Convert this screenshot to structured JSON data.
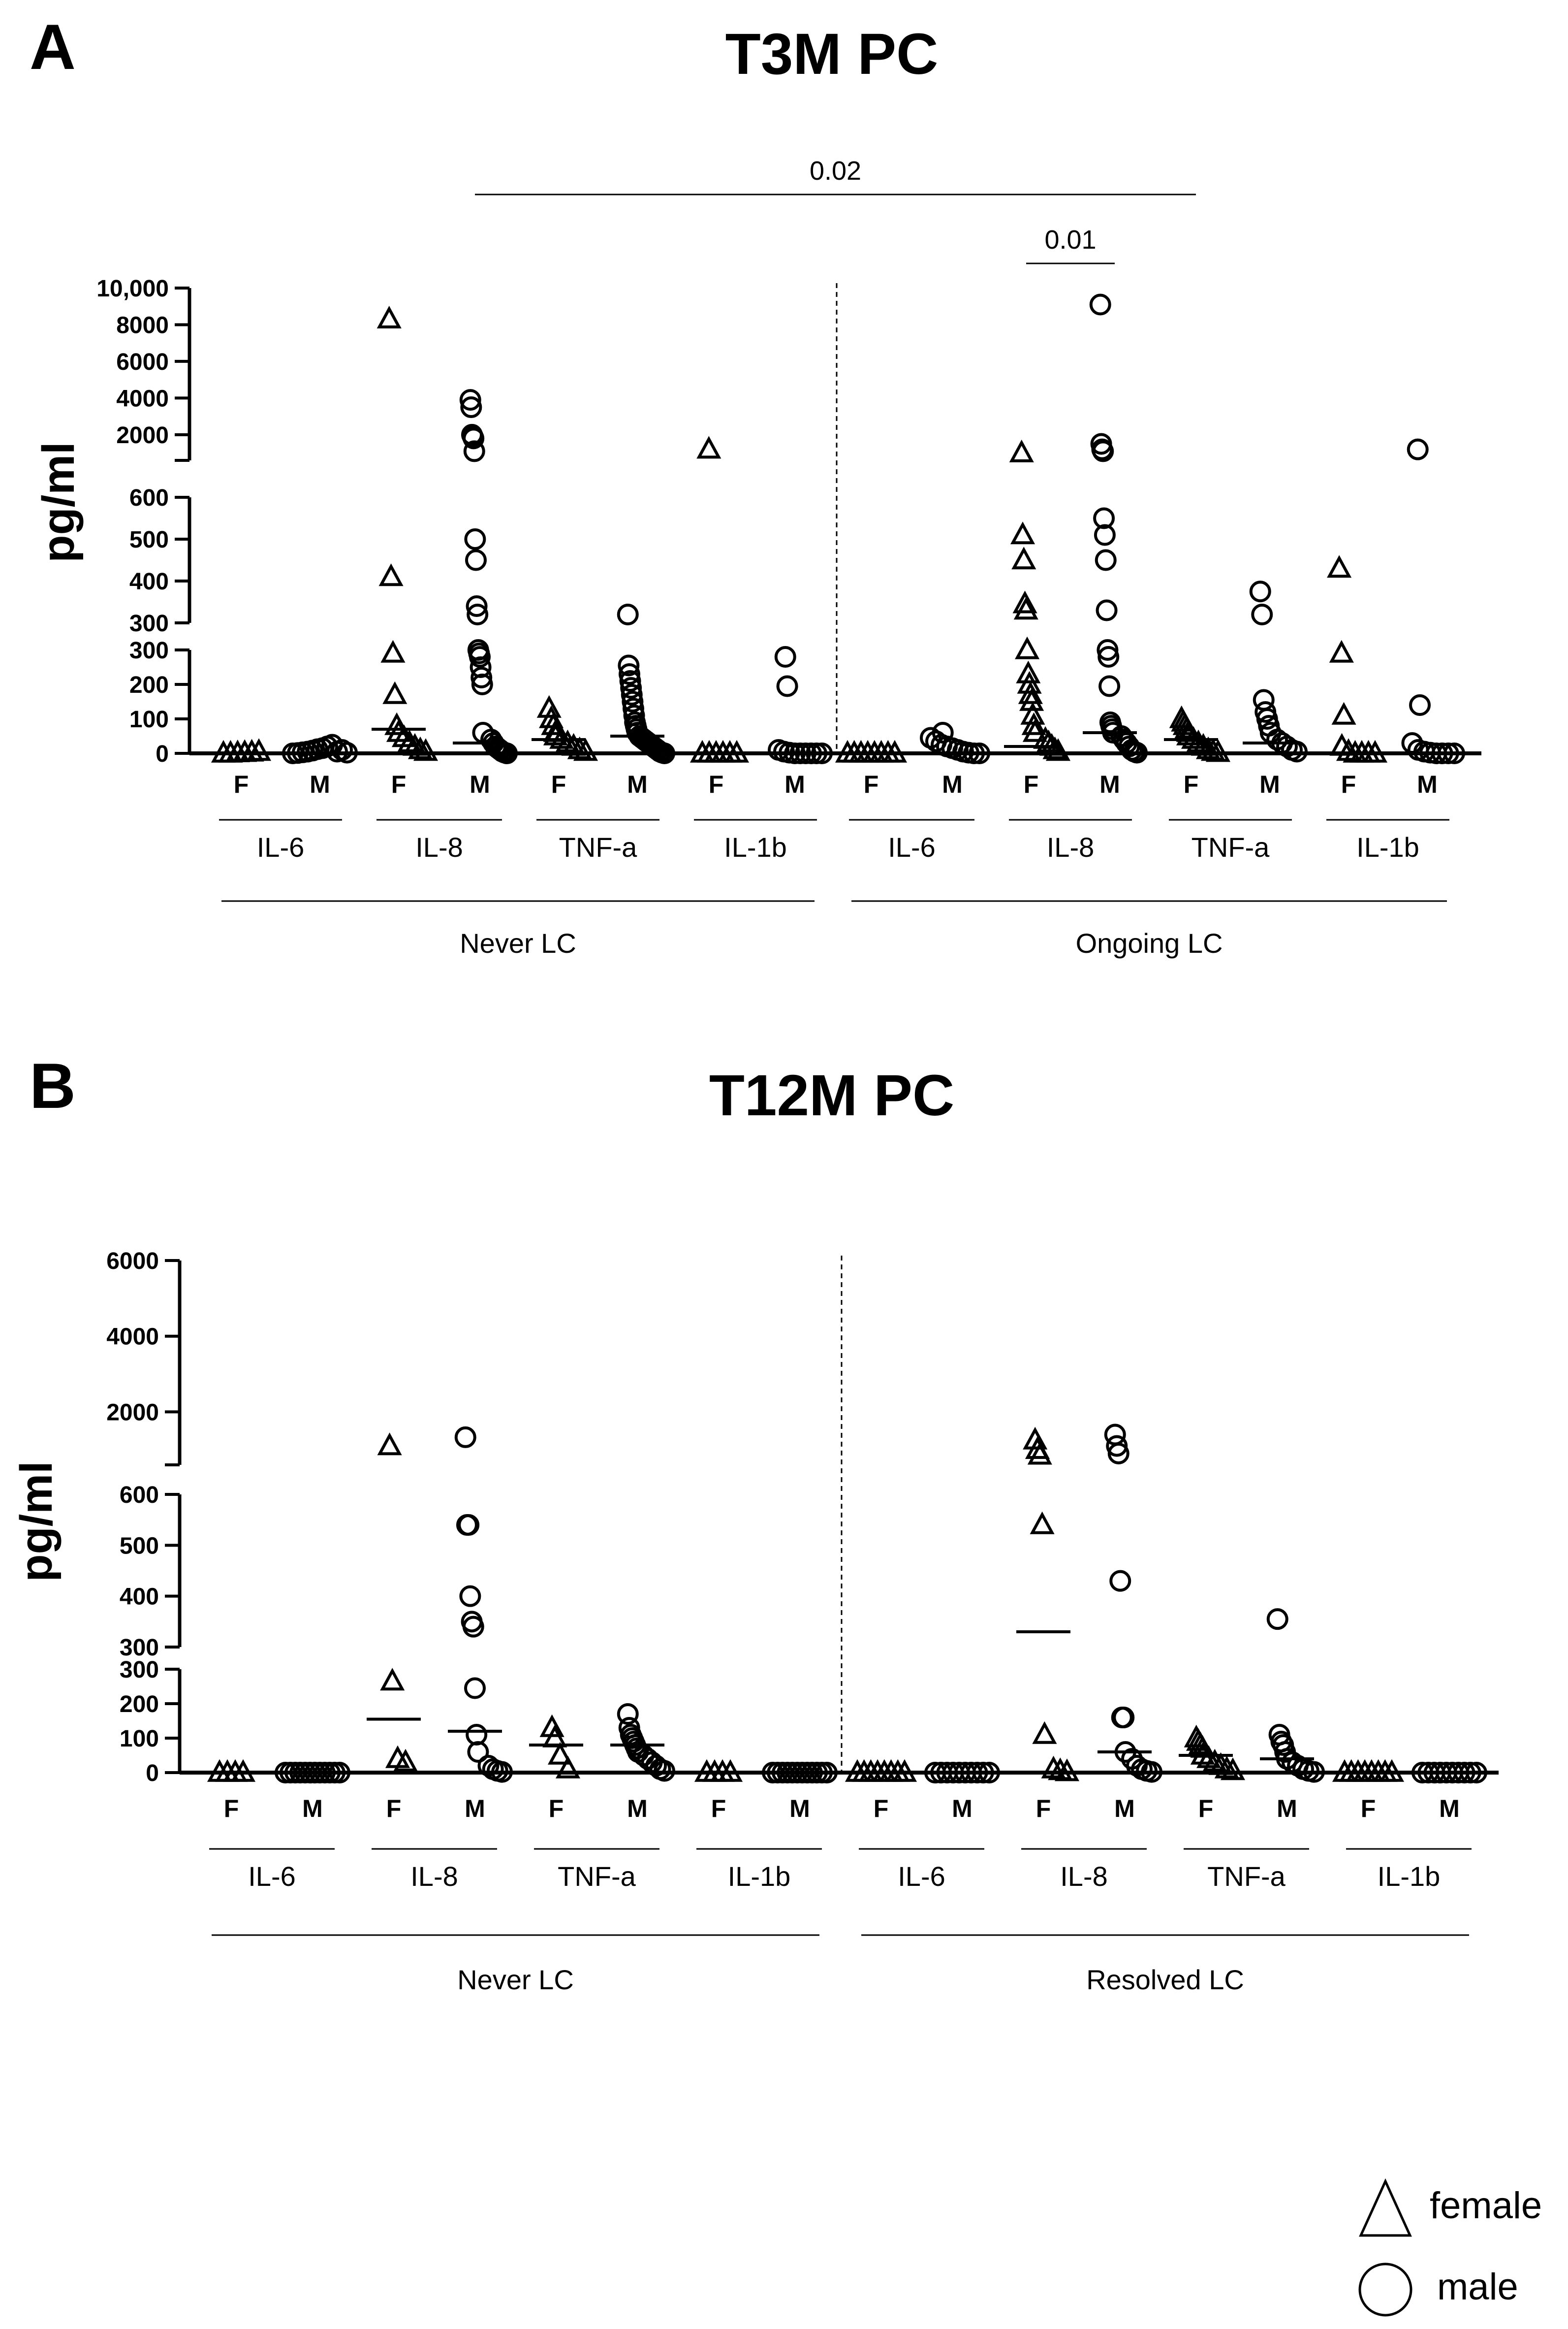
{
  "chart_data": [
    {
      "panel": "A",
      "title": "T3M PC",
      "type": "scatter",
      "ylabel": "pg/ml",
      "y_axis_segments": [
        {
          "range": [
            0,
            300
          ],
          "ticks": [
            {
              "v": 0,
              "label": "0"
            },
            {
              "v": 100,
              "label": "100"
            },
            {
              "v": 200,
              "label": "200"
            },
            {
              "v": 300,
              "label": "300"
            }
          ]
        },
        {
          "range": [
            300,
            600
          ],
          "ticks": [
            {
              "v": 300,
              "label": "300"
            },
            {
              "v": 400,
              "label": "400"
            },
            {
              "v": 500,
              "label": "500"
            },
            {
              "v": 600,
              "label": "600"
            }
          ]
        },
        {
          "range": [
            600,
            10000
          ],
          "ticks": [
            {
              "v": 2000,
              "label": "2000"
            },
            {
              "v": 4000,
              "label": "4000"
            },
            {
              "v": 6000,
              "label": "6000"
            },
            {
              "v": 8000,
              "label": "8000"
            },
            {
              "v": 10000,
              "label": "10,000"
            }
          ]
        }
      ],
      "cytokine_labels": [
        "IL-6",
        "IL-8",
        "TNF-a",
        "IL-1b",
        "IL-6",
        "IL-8",
        "TNF-a",
        "IL-1b"
      ],
      "group_labels": [
        "Never LC",
        "Ongoing LC"
      ],
      "significance": [
        {
          "label": "0.02",
          "from_column": 3,
          "to_column": 12
        },
        {
          "label": "0.01",
          "from_column": 10,
          "to_column": 11
        }
      ],
      "columns": [
        {
          "sex": "F",
          "shape": "triangle",
          "median": 0,
          "values": [
            0,
            0,
            1,
            2,
            3,
            5
          ]
        },
        {
          "sex": "M",
          "shape": "circle",
          "median": 0,
          "values": [
            0,
            1,
            3,
            5,
            8,
            12,
            15,
            20,
            25,
            5,
            10,
            2
          ]
        },
        {
          "sex": "F",
          "shape": "triangle",
          "median": 70,
          "values": [
            8300,
            410,
            290,
            170,
            80,
            60,
            45,
            30,
            20,
            10,
            5
          ]
        },
        {
          "sex": "M",
          "shape": "circle",
          "median": 30,
          "values": [
            3900,
            3500,
            2000,
            1900,
            1800,
            1100,
            500,
            450,
            340,
            320,
            300,
            290,
            280,
            250,
            220,
            200,
            60,
            40,
            30,
            20,
            15,
            10,
            5,
            2,
            0
          ]
        },
        {
          "sex": "F",
          "shape": "triangle",
          "median": 40,
          "values": [
            130,
            100,
            80,
            60,
            50,
            40,
            30,
            20,
            10,
            5
          ]
        },
        {
          "sex": "M",
          "shape": "circle",
          "median": 50,
          "values": [
            320,
            255,
            230,
            210,
            190,
            170,
            150,
            130,
            110,
            90,
            80,
            70,
            60,
            50,
            45,
            40,
            35,
            30,
            25,
            20,
            15,
            10,
            5,
            2,
            0
          ]
        },
        {
          "sex": "F",
          "shape": "triangle",
          "median": 0,
          "values": [
            1200,
            0,
            0,
            0,
            0,
            0,
            0
          ]
        },
        {
          "sex": "M",
          "shape": "circle",
          "median": 0,
          "values": [
            280,
            195,
            10,
            5,
            2,
            0,
            0,
            0,
            0,
            0,
            0
          ]
        },
        {
          "sex": "F",
          "shape": "triangle",
          "median": 0,
          "values": [
            0,
            0,
            0,
            0,
            0,
            0,
            0,
            0
          ]
        },
        {
          "sex": "M",
          "shape": "circle",
          "median": 0,
          "values": [
            60,
            45,
            35,
            25,
            20,
            15,
            10,
            5,
            2,
            0,
            0
          ]
        },
        {
          "sex": "F",
          "shape": "triangle",
          "median": 20,
          "values": [
            1000,
            510,
            450,
            345,
            330,
            300,
            230,
            200,
            170,
            150,
            110,
            80,
            60,
            40,
            30,
            20,
            10,
            5
          ]
        },
        {
          "sex": "M",
          "shape": "circle",
          "median": 60,
          "values": [
            9100,
            1500,
            1200,
            1100,
            550,
            510,
            450,
            330,
            300,
            280,
            195,
            90,
            80,
            70,
            60,
            50,
            40,
            30,
            20,
            10,
            5,
            2
          ]
        },
        {
          "sex": "F",
          "shape": "triangle",
          "median": 40,
          "values": [
            100,
            90,
            80,
            70,
            60,
            50,
            40,
            30,
            20,
            10,
            5,
            2
          ]
        },
        {
          "sex": "M",
          "shape": "circle",
          "median": 30,
          "values": [
            375,
            320,
            155,
            120,
            100,
            80,
            60,
            40,
            30,
            20,
            10,
            5
          ]
        },
        {
          "sex": "F",
          "shape": "triangle",
          "median": 0,
          "values": [
            430,
            290,
            110,
            20,
            5,
            0,
            0,
            0,
            0
          ]
        },
        {
          "sex": "M",
          "shape": "circle",
          "median": 0,
          "values": [
            1200,
            140,
            30,
            10,
            5,
            2,
            0,
            0,
            0,
            0
          ]
        }
      ]
    },
    {
      "panel": "B",
      "title": "T12M PC",
      "type": "scatter",
      "ylabel": "pg/ml",
      "y_axis_segments": [
        {
          "range": [
            0,
            300
          ],
          "ticks": [
            {
              "v": 0,
              "label": "0"
            },
            {
              "v": 100,
              "label": "100"
            },
            {
              "v": 200,
              "label": "200"
            },
            {
              "v": 300,
              "label": "300"
            }
          ]
        },
        {
          "range": [
            300,
            600
          ],
          "ticks": [
            {
              "v": 300,
              "label": "300"
            },
            {
              "v": 400,
              "label": "400"
            },
            {
              "v": 500,
              "label": "500"
            },
            {
              "v": 600,
              "label": "600"
            }
          ]
        },
        {
          "range": [
            600,
            6000
          ],
          "ticks": [
            {
              "v": 2000,
              "label": "2000"
            },
            {
              "v": 4000,
              "label": "4000"
            },
            {
              "v": 6000,
              "label": "6000"
            }
          ]
        }
      ],
      "cytokine_labels": [
        "IL-6",
        "IL-8",
        "TNF-a",
        "IL-1b",
        "IL-6",
        "IL-8",
        "TNF-a",
        "IL-1b"
      ],
      "group_labels": [
        "Never LC",
        "Resolved LC"
      ],
      "significance": [],
      "columns": [
        {
          "sex": "F",
          "shape": "triangle",
          "median": 0,
          "values": [
            0,
            0,
            0,
            0
          ]
        },
        {
          "sex": "M",
          "shape": "circle",
          "median": 0,
          "values": [
            0,
            0,
            0,
            0,
            0,
            0,
            0,
            0,
            0,
            0,
            0,
            0
          ]
        },
        {
          "sex": "F",
          "shape": "triangle",
          "median": 155,
          "values": [
            1100,
            265,
            40,
            30
          ]
        },
        {
          "sex": "M",
          "shape": "circle",
          "median": 120,
          "values": [
            1330,
            540,
            540,
            400,
            350,
            340,
            245,
            110,
            60,
            20,
            10,
            5,
            2
          ]
        },
        {
          "sex": "F",
          "shape": "triangle",
          "median": 80,
          "values": [
            130,
            100,
            50,
            10
          ]
        },
        {
          "sex": "M",
          "shape": "circle",
          "median": 80,
          "values": [
            170,
            130,
            110,
            100,
            90,
            80,
            70,
            60,
            50,
            40,
            30,
            20,
            10,
            5
          ]
        },
        {
          "sex": "F",
          "shape": "triangle",
          "median": 0,
          "values": [
            0,
            0,
            0,
            0
          ]
        },
        {
          "sex": "M",
          "shape": "circle",
          "median": 0,
          "values": [
            0,
            0,
            0,
            0,
            0,
            0,
            0,
            0,
            0,
            0,
            0,
            0
          ]
        },
        {
          "sex": "F",
          "shape": "triangle",
          "median": 0,
          "values": [
            0,
            0,
            0,
            0,
            0,
            0,
            0,
            0
          ]
        },
        {
          "sex": "M",
          "shape": "circle",
          "median": 0,
          "values": [
            0,
            0,
            0,
            0,
            0,
            0,
            0,
            0,
            0,
            0
          ]
        },
        {
          "sex": "F",
          "shape": "triangle",
          "median": 330,
          "values": [
            1250,
            1000,
            850,
            540,
            110,
            10,
            5,
            2
          ]
        },
        {
          "sex": "M",
          "shape": "circle",
          "median": 60,
          "values": [
            1400,
            1100,
            900,
            430,
            160,
            160,
            60,
            40,
            20,
            10,
            5,
            2
          ]
        },
        {
          "sex": "F",
          "shape": "triangle",
          "median": 50,
          "values": [
            100,
            90,
            80,
            70,
            50,
            40,
            30,
            20,
            10,
            5
          ]
        },
        {
          "sex": "M",
          "shape": "circle",
          "median": 40,
          "values": [
            355,
            110,
            90,
            80,
            60,
            40,
            30,
            20,
            10,
            5,
            2
          ]
        },
        {
          "sex": "F",
          "shape": "triangle",
          "median": 0,
          "values": [
            0,
            0,
            0,
            0,
            0,
            0,
            0,
            0
          ]
        },
        {
          "sex": "M",
          "shape": "circle",
          "median": 0,
          "values": [
            0,
            0,
            0,
            0,
            0,
            0,
            0,
            0,
            0,
            0
          ]
        }
      ]
    }
  ],
  "legend": [
    {
      "shape": "triangle",
      "label": "female"
    },
    {
      "shape": "circle",
      "label": "male"
    }
  ]
}
